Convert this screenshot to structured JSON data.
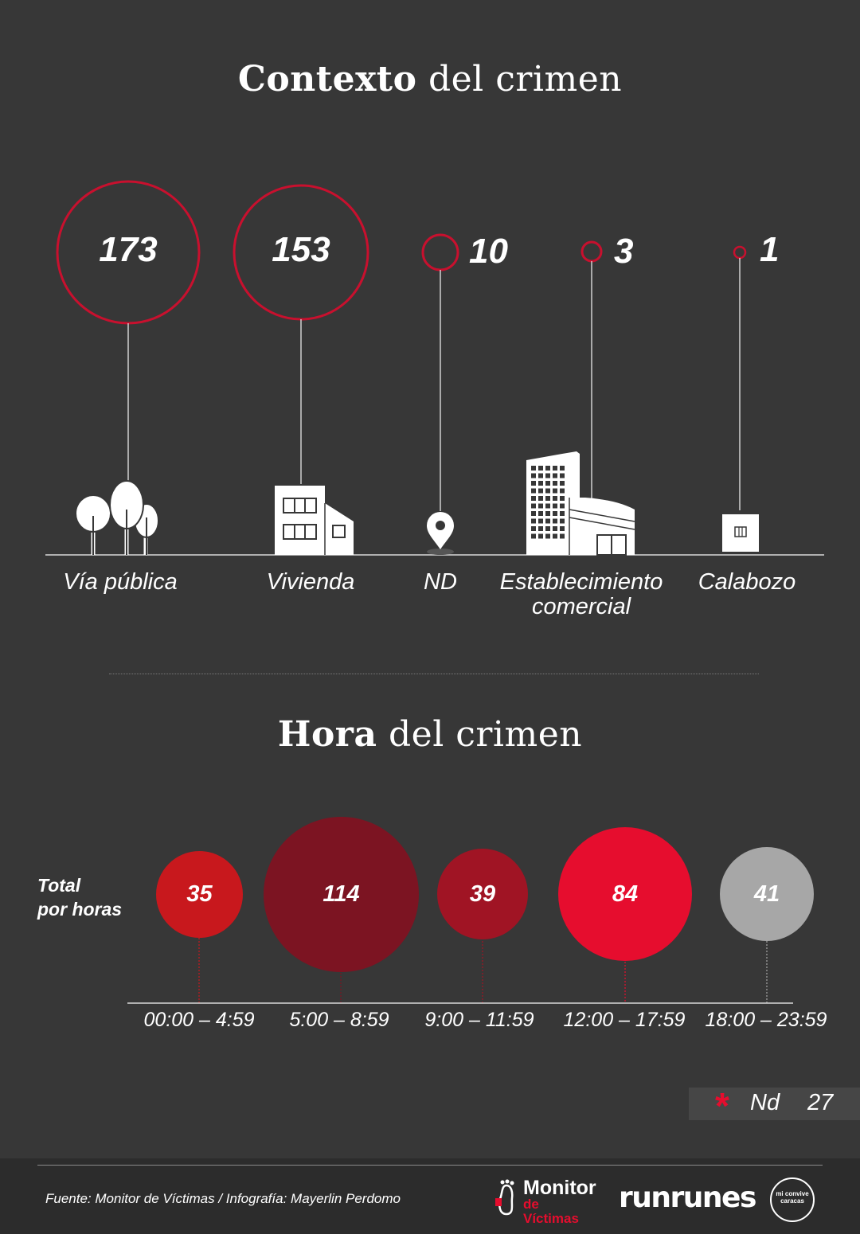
{
  "context": {
    "title_bold": "Contexto",
    "title_rest": " del crimen",
    "items": [
      {
        "value": "173",
        "label": "Vía pública",
        "icon": "trees-icon"
      },
      {
        "value": "153",
        "label": "Vivienda",
        "icon": "house-icon"
      },
      {
        "value": "10",
        "label": "ND",
        "icon": "map-pin-icon"
      },
      {
        "value": "3",
        "label": "Establecimiento comercial",
        "label_line1": "Establecimiento",
        "label_line2": "comercial",
        "icon": "commercial-building-icon"
      },
      {
        "value": "1",
        "label": "Calabozo",
        "icon": "jail-cell-icon"
      }
    ]
  },
  "hours": {
    "title_bold": "Hora",
    "title_rest": " del crimen",
    "side_label_line1": "Total",
    "side_label_line2": "por horas",
    "slots": [
      {
        "range": "00:00 – 4:59",
        "value": "35",
        "color": "#c8181d"
      },
      {
        "range": "5:00 – 8:59",
        "value": "114",
        "color": "#7c1422"
      },
      {
        "range": "9:00 – 11:59",
        "value": "39",
        "color": "#a01424"
      },
      {
        "range": "12:00 – 17:59",
        "value": "84",
        "color": "#e60d2e"
      },
      {
        "range": "18:00 – 23:59",
        "value": "41",
        "color": "#a7a7a7"
      }
    ],
    "nd_label": "Nd",
    "nd_value": "27"
  },
  "footer": {
    "source": "Fuente: Monitor de Víctimas / Infografía: Mayerlin Perdomo",
    "logo1_line1": "Monitor",
    "logo1_line2": "de Víctimas",
    "logo2": "runrunes",
    "logo3": "mi convive caracas"
  },
  "colors": {
    "background": "#373737",
    "accent_red": "#c8102e",
    "footer_bg": "#2c2c2c"
  }
}
